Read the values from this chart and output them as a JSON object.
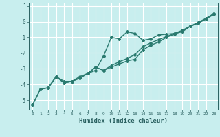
{
  "xlabel": "Humidex (Indice chaleur)",
  "ylabel": "",
  "background_color": "#c8eeee",
  "grid_color": "#ffffff",
  "line_color": "#2a7a6f",
  "xlim": [
    -0.5,
    23.5
  ],
  "ylim": [
    -5.6,
    1.2
  ],
  "yticks": [
    1,
    0,
    -1,
    -2,
    -3,
    -4,
    -5
  ],
  "xticks": [
    0,
    1,
    2,
    3,
    4,
    5,
    6,
    7,
    8,
    9,
    10,
    11,
    12,
    13,
    14,
    15,
    16,
    17,
    18,
    19,
    20,
    21,
    22,
    23
  ],
  "line1_x": [
    0,
    1,
    2,
    3,
    4,
    5,
    6,
    7,
    8,
    9,
    10,
    11,
    12,
    13,
    14,
    15,
    16,
    17,
    18,
    19,
    20,
    21,
    22,
    23
  ],
  "line1_y": [
    -5.3,
    -4.3,
    -4.2,
    -3.5,
    -3.8,
    -3.8,
    -3.5,
    -3.3,
    -3.1,
    -2.2,
    -1.0,
    -1.1,
    -0.65,
    -0.75,
    -1.2,
    -1.1,
    -0.85,
    -0.8,
    -0.75,
    -0.65,
    -0.3,
    -0.1,
    0.2,
    0.5
  ],
  "line2_x": [
    0,
    1,
    2,
    3,
    4,
    5,
    6,
    7,
    8,
    9,
    10,
    11,
    12,
    13,
    14,
    15,
    16,
    17,
    18,
    19,
    20,
    21,
    22,
    23
  ],
  "line2_y": [
    -5.3,
    -4.3,
    -4.2,
    -3.5,
    -3.9,
    -3.8,
    -3.6,
    -3.3,
    -2.9,
    -3.1,
    -2.9,
    -2.7,
    -2.5,
    -2.4,
    -1.8,
    -1.5,
    -1.3,
    -1.0,
    -0.8,
    -0.6,
    -0.3,
    -0.1,
    0.15,
    0.45
  ],
  "line3_x": [
    2,
    3,
    4,
    5,
    6,
    7,
    8,
    9,
    10,
    11,
    12,
    13,
    14,
    15,
    16,
    17,
    18,
    19,
    20,
    21,
    22,
    23
  ],
  "line3_y": [
    -4.2,
    -3.5,
    -3.9,
    -3.8,
    -3.6,
    -3.3,
    -2.9,
    -3.1,
    -2.8,
    -2.55,
    -2.35,
    -2.1,
    -1.6,
    -1.35,
    -1.15,
    -0.95,
    -0.75,
    -0.55,
    -0.3,
    -0.05,
    0.2,
    0.5
  ],
  "marker": "D",
  "marker_size": 2,
  "line_width": 1.0
}
